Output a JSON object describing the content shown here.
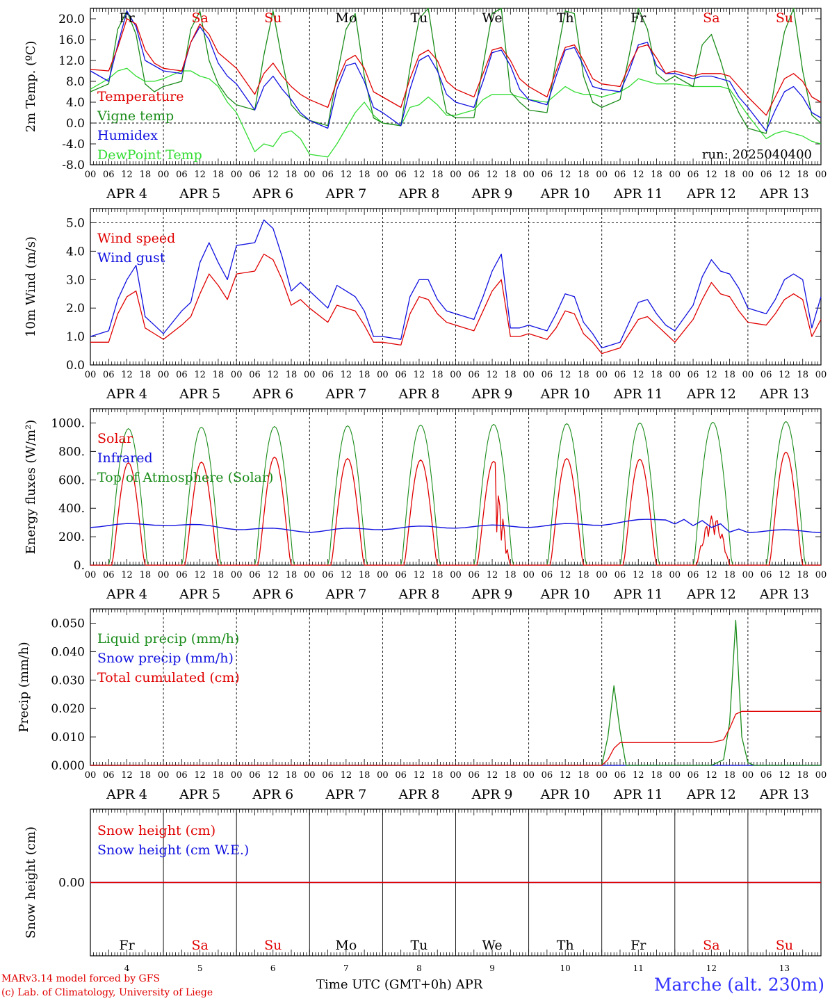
{
  "footer": {
    "credit_line1": "MARv3.14 model forced by GFS",
    "credit_line2": "(c) Lab. of Climatology, University of Liege",
    "x_axis_title": "Time UTC (GMT+0h) APR",
    "station": "Marche (alt. 230m)"
  },
  "run_label": "run: 2025040400",
  "colors": {
    "red": "#e00000",
    "blue": "#1010e0",
    "green": "#1a8c1a",
    "light_green": "#33dd33",
    "axis": "#000000"
  },
  "time_axis": {
    "hour_ticks": [
      "00",
      "06",
      "12",
      "18"
    ],
    "end_tick": "00",
    "day_labels": [
      "APR  4",
      "APR  5",
      "APR  6",
      "APR  7",
      "APR  8",
      "APR  9",
      "APR 10",
      "APR 11",
      "APR 12",
      "APR 13"
    ],
    "weekdays": [
      {
        "label": "Fr",
        "weekend": false
      },
      {
        "label": "Sa",
        "weekend": true
      },
      {
        "label": "Su",
        "weekend": true
      },
      {
        "label": "Mo",
        "weekend": false
      },
      {
        "label": "Tu",
        "weekend": false
      },
      {
        "label": "We",
        "weekend": false
      },
      {
        "label": "Th",
        "weekend": false
      },
      {
        "label": "Fr",
        "weekend": false
      },
      {
        "label": "Sa",
        "weekend": true
      },
      {
        "label": "Su",
        "weekend": true
      }
    ],
    "day_numbers": [
      "4",
      "5",
      "6",
      "7",
      "8",
      "9",
      "10",
      "11",
      "12",
      "13"
    ]
  },
  "chart_data": [
    {
      "type": "line",
      "id": "temperature",
      "ylabel": "2m Temp. (ºC)",
      "ylim": [
        -8,
        22
      ],
      "yticks": [
        "-8.0",
        "-4.0",
        "0.0",
        "4.0",
        "8.0",
        "12.0",
        "16.0",
        "20.0"
      ],
      "reference_lines": [
        0
      ],
      "x_hours": [
        0,
        6,
        9,
        12,
        15,
        18,
        21,
        24,
        30,
        33,
        36,
        39,
        42,
        45,
        48,
        54,
        57,
        60,
        63,
        66,
        69,
        72,
        78,
        81,
        84,
        87,
        90,
        93,
        96,
        102,
        105,
        108,
        111,
        114,
        117,
        120,
        126,
        129,
        132,
        135,
        138,
        141,
        144,
        150,
        153,
        156,
        159,
        162,
        165,
        168,
        174,
        177,
        180,
        183,
        186,
        189,
        192,
        198,
        201,
        204,
        207,
        210,
        213,
        216,
        222,
        225,
        228,
        231,
        234,
        237,
        240
      ],
      "series": [
        {
          "name": "Temperature",
          "color": "red",
          "values": [
            10.3,
            10.0,
            14.5,
            20.0,
            19.0,
            14.0,
            11.5,
            10.5,
            10.0,
            15.5,
            19.0,
            17.0,
            13.5,
            12.0,
            10.5,
            5.5,
            9.5,
            11.5,
            9.0,
            7.0,
            5.5,
            4.5,
            3.0,
            8.0,
            12.0,
            13.0,
            10.5,
            6.0,
            5.0,
            3.0,
            8.5,
            13.0,
            14.0,
            12.0,
            8.0,
            6.5,
            5.0,
            9.5,
            14.0,
            14.5,
            12.0,
            8.5,
            7.0,
            5.0,
            10.0,
            14.5,
            15.0,
            12.0,
            8.5,
            7.5,
            7.0,
            11.0,
            14.5,
            15.0,
            12.5,
            9.5,
            10.0,
            9.0,
            9.5,
            9.5,
            9.5,
            9.0,
            7.0,
            5.0,
            1.5,
            5.0,
            8.5,
            9.5,
            8.0,
            5.0,
            4.0
          ]
        },
        {
          "name": "Vigne temp",
          "color": "green",
          "values": [
            6.0,
            7.5,
            18.0,
            21.5,
            17.0,
            7.5,
            6.0,
            7.0,
            8.0,
            18.0,
            21.5,
            12.0,
            7.5,
            5.0,
            3.5,
            2.5,
            13.0,
            21.5,
            12.0,
            3.5,
            1.5,
            0.5,
            -0.5,
            9.0,
            18.0,
            21.0,
            9.0,
            1.0,
            0.0,
            -0.5,
            10.5,
            20.0,
            22.0,
            10.5,
            2.0,
            1.0,
            1.0,
            11.0,
            21.0,
            22.0,
            6.0,
            4.0,
            2.5,
            2.0,
            12.0,
            21.5,
            21.0,
            9.0,
            4.0,
            3.0,
            4.5,
            13.0,
            22.0,
            18.0,
            9.5,
            8.0,
            9.0,
            7.0,
            15.0,
            17.0,
            12.0,
            6.0,
            2.0,
            -1.0,
            -2.0,
            8.0,
            17.5,
            22.0,
            10.0,
            1.5,
            0.0
          ]
        },
        {
          "name": "Humidex",
          "color": "blue",
          "values": [
            10.0,
            8.0,
            15.0,
            21.5,
            18.5,
            12.0,
            11.0,
            10.0,
            9.5,
            15.5,
            18.5,
            16.0,
            11.5,
            9.0,
            7.5,
            2.5,
            7.0,
            9.0,
            6.5,
            4.5,
            2.0,
            0.5,
            -1.0,
            6.5,
            11.0,
            11.5,
            8.0,
            3.0,
            2.0,
            -0.5,
            6.5,
            12.0,
            13.0,
            10.0,
            5.5,
            4.0,
            3.0,
            8.0,
            13.5,
            14.0,
            11.0,
            6.5,
            4.5,
            3.5,
            9.0,
            14.0,
            14.5,
            11.0,
            7.0,
            6.5,
            6.0,
            10.0,
            15.0,
            15.5,
            11.0,
            9.5,
            9.5,
            8.5,
            9.0,
            9.0,
            8.5,
            8.0,
            5.0,
            3.0,
            -1.5,
            2.5,
            6.0,
            7.0,
            5.0,
            2.0,
            1.0
          ]
        },
        {
          "name": "DewPoint Temp",
          "color": "light_green",
          "values": [
            6.5,
            8.5,
            10.0,
            10.5,
            9.0,
            8.0,
            8.0,
            8.5,
            10.0,
            10.0,
            9.0,
            8.5,
            7.0,
            4.0,
            2.0,
            -5.5,
            -4.0,
            -4.5,
            -2.0,
            -1.5,
            -3.0,
            -6.0,
            -6.5,
            -4.0,
            -1.0,
            2.0,
            4.0,
            1.5,
            0.0,
            -0.5,
            3.0,
            3.5,
            5.0,
            3.5,
            1.5,
            1.5,
            2.5,
            4.5,
            5.5,
            5.5,
            5.5,
            5.0,
            4.5,
            4.0,
            5.5,
            7.0,
            6.0,
            5.5,
            5.5,
            5.0,
            6.0,
            7.0,
            8.5,
            8.0,
            7.5,
            7.5,
            7.5,
            7.0,
            7.0,
            7.0,
            7.0,
            6.5,
            4.0,
            1.5,
            -3.0,
            -2.0,
            -1.5,
            -2.0,
            -2.5,
            -3.5,
            -4.0
          ]
        }
      ]
    },
    {
      "type": "line",
      "id": "wind",
      "ylabel": "10m Wind (m/s)",
      "ylim": [
        0,
        5.5
      ],
      "yticks": [
        "0.0",
        "1.0",
        "2.0",
        "3.0",
        "4.0",
        "5.0"
      ],
      "reference_lines": [
        5.0
      ],
      "x_hours": [
        0,
        6,
        9,
        12,
        15,
        18,
        21,
        24,
        30,
        33,
        36,
        39,
        42,
        45,
        48,
        54,
        57,
        60,
        63,
        66,
        69,
        72,
        78,
        81,
        84,
        87,
        90,
        93,
        96,
        102,
        105,
        108,
        111,
        114,
        117,
        120,
        126,
        129,
        132,
        135,
        138,
        141,
        144,
        150,
        153,
        156,
        159,
        162,
        165,
        168,
        174,
        177,
        180,
        183,
        186,
        189,
        192,
        198,
        201,
        204,
        207,
        210,
        213,
        216,
        222,
        225,
        228,
        231,
        234,
        237,
        240
      ],
      "series": [
        {
          "name": "Wind speed",
          "color": "red",
          "values": [
            0.8,
            0.8,
            1.8,
            2.4,
            2.6,
            1.3,
            1.1,
            0.9,
            1.4,
            1.7,
            2.5,
            3.2,
            2.8,
            2.3,
            3.2,
            3.3,
            3.9,
            3.7,
            3.0,
            2.1,
            2.3,
            2.0,
            1.5,
            2.1,
            2.0,
            1.9,
            1.4,
            0.8,
            0.8,
            0.7,
            1.8,
            2.4,
            2.3,
            1.8,
            1.5,
            1.4,
            1.2,
            1.9,
            2.6,
            3.0,
            1.0,
            1.0,
            1.1,
            0.9,
            1.3,
            1.9,
            1.8,
            1.1,
            0.8,
            0.4,
            0.6,
            1.1,
            1.6,
            1.7,
            1.4,
            1.1,
            0.8,
            1.6,
            2.3,
            2.9,
            2.5,
            2.4,
            1.9,
            1.5,
            1.4,
            1.8,
            2.3,
            2.5,
            2.3,
            1.0,
            1.6
          ]
        },
        {
          "name": "Wind gust",
          "color": "blue",
          "values": [
            1.0,
            1.2,
            2.3,
            3.0,
            3.5,
            1.7,
            1.4,
            1.1,
            1.9,
            2.2,
            3.6,
            4.3,
            3.6,
            3.0,
            4.2,
            4.3,
            5.1,
            4.8,
            3.8,
            2.6,
            2.9,
            2.6,
            2.0,
            2.8,
            2.6,
            2.4,
            1.9,
            1.0,
            1.0,
            0.9,
            2.4,
            3.0,
            3.0,
            2.3,
            1.9,
            1.8,
            1.6,
            2.4,
            3.3,
            3.9,
            1.3,
            1.3,
            1.4,
            1.2,
            1.8,
            2.5,
            2.4,
            1.5,
            1.1,
            0.6,
            0.8,
            1.5,
            2.2,
            2.3,
            1.8,
            1.4,
            1.2,
            2.1,
            3.1,
            3.7,
            3.3,
            3.2,
            2.7,
            2.0,
            1.8,
            2.3,
            3.0,
            3.2,
            3.0,
            1.3,
            2.4
          ]
        }
      ]
    },
    {
      "type": "line",
      "id": "energy",
      "ylabel": "Energy fluxes (W/m²)",
      "ylim": [
        0,
        1100
      ],
      "yticks": [
        "0.",
        "200.",
        "400.",
        "600.",
        "800.",
        "1000."
      ],
      "x_hours": [
        0,
        3,
        6,
        7,
        8,
        9,
        10,
        11,
        12,
        13,
        14,
        15,
        16,
        17,
        18,
        21
      ],
      "days": 10,
      "series": [
        {
          "name": "Solar",
          "color": "red",
          "peaks": [
            720,
            725,
            760,
            750,
            740,
            730,
            750,
            745,
            300,
            795
          ],
          "days_disturbed": [
            5,
            8
          ]
        },
        {
          "name": "Infrared",
          "color": "blue",
          "values_per_day": [
            275,
            290,
            260,
            240,
            260,
            270,
            275,
            290,
            330,
            240
          ]
        },
        {
          "name": "Top of Atmosphere (Solar)",
          "color": "green",
          "peaks": [
            960,
            970,
            975,
            980,
            985,
            990,
            995,
            1000,
            1005,
            1010
          ]
        }
      ]
    },
    {
      "type": "line",
      "id": "precip",
      "ylabel": "Precip (mm/h)",
      "ylim": [
        0,
        0.055
      ],
      "yticks": [
        "0.000",
        "0.010",
        "0.020",
        "0.030",
        "0.040",
        "0.050"
      ],
      "x_hours": [
        0,
        168,
        170,
        172,
        174,
        176,
        178,
        180,
        204,
        208,
        210,
        212,
        214,
        216,
        218,
        240
      ],
      "series": [
        {
          "name": "Liquid precip (mm/h)",
          "color": "green",
          "values": [
            0,
            0,
            0.01,
            0.028,
            0.012,
            0,
            0,
            0,
            0,
            0.002,
            0.015,
            0.051,
            0.01,
            0.001,
            0,
            0
          ]
        },
        {
          "name": "Snow precip (mm/h)",
          "color": "blue",
          "values": [
            0,
            0,
            0,
            0,
            0,
            0,
            0,
            0,
            0,
            0,
            0,
            0,
            0,
            0,
            0,
            0
          ]
        },
        {
          "name": "Total cumulated (cm)",
          "color": "red",
          "values": [
            0,
            0,
            0.002,
            0.006,
            0.008,
            0.008,
            0.008,
            0.008,
            0.008,
            0.009,
            0.013,
            0.018,
            0.019,
            0.019,
            0.019,
            0.019
          ]
        }
      ]
    },
    {
      "type": "line",
      "id": "snow",
      "ylabel": "Snow height (cm)",
      "ylim": [
        -1,
        1
      ],
      "yticks": [
        "0.00"
      ],
      "x_hours": [
        0,
        240
      ],
      "series": [
        {
          "name": "Snow height (cm)",
          "color": "red",
          "values": [
            0,
            0
          ]
        },
        {
          "name": "Snow height (cm W.E.)",
          "color": "blue",
          "values": [
            0,
            0
          ]
        }
      ]
    }
  ]
}
